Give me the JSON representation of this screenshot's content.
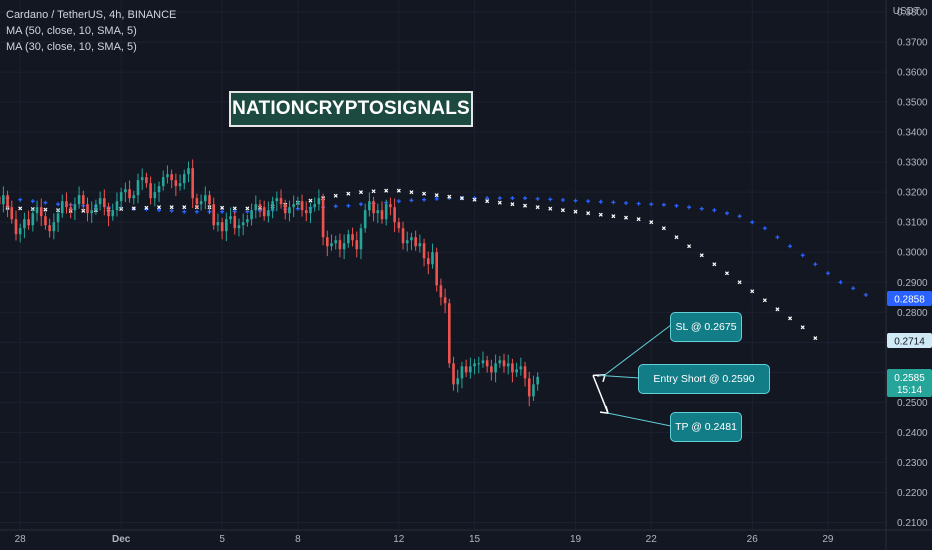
{
  "legend": {
    "symbol": "Cardano / TetherUS, 4h, BINANCE",
    "ma1": "MA (50, close, 10, SMA, 5)",
    "ma2": "MA (30, close, 10, SMA, 5)"
  },
  "brand": "NATIONCRYPTOSIGNALS",
  "axis_unit": "USDT",
  "callouts": {
    "sl": "SL @ 0.2675",
    "entry": "Entry Short @ 0.2590",
    "tp": "TP @ 0.2481"
  },
  "price_tags": {
    "ma50": "0.2858",
    "ma30": "0.2714",
    "last": "0.2585",
    "countdown": "15:14"
  },
  "colors": {
    "background": "#131722",
    "up": "#26a69a",
    "down": "#ef5350",
    "ma50": "#2962ff",
    "ma30": "#ffffff",
    "callout": "#137d87"
  },
  "chart_data": {
    "type": "candlestick",
    "y_ticks": [
      "0.3800",
      "0.3700",
      "0.3600",
      "0.3500",
      "0.3400",
      "0.3300",
      "0.3200",
      "0.3100",
      "0.3000",
      "0.2900",
      "0.2800",
      "0.2700",
      "0.2600",
      "0.2500",
      "0.2400",
      "0.2300",
      "0.2200",
      "0.2100"
    ],
    "ylim": [
      0.2075,
      0.384
    ],
    "x_ticks": [
      {
        "label": "28",
        "day": -3
      },
      {
        "label": "Dec",
        "day": 1
      },
      {
        "label": "5",
        "day": 5
      },
      {
        "label": "8",
        "day": 8
      },
      {
        "label": "12",
        "day": 12
      },
      {
        "label": "15",
        "day": 15
      },
      {
        "label": "19",
        "day": 19
      },
      {
        "label": "22",
        "day": 22
      },
      {
        "label": "26",
        "day": 26
      },
      {
        "label": "29",
        "day": 29
      }
    ],
    "xlim": [
      -3.8,
      31.3
    ],
    "candles_per_day": 6,
    "first_candle_day": -4,
    "closes": [
      0.3185,
      0.316,
      0.319,
      0.315,
      0.311,
      0.306,
      0.308,
      0.311,
      0.309,
      0.313,
      0.315,
      0.312,
      0.309,
      0.307,
      0.31,
      0.313,
      0.317,
      0.315,
      0.314,
      0.316,
      0.319,
      0.316,
      0.313,
      0.314,
      0.316,
      0.318,
      0.315,
      0.312,
      0.314,
      0.317,
      0.32,
      0.321,
      0.318,
      0.319,
      0.324,
      0.325,
      0.323,
      0.318,
      0.32,
      0.322,
      0.325,
      0.326,
      0.324,
      0.322,
      0.323,
      0.326,
      0.328,
      0.318,
      0.316,
      0.317,
      0.319,
      0.316,
      0.309,
      0.31,
      0.307,
      0.311,
      0.312,
      0.308,
      0.309,
      0.31,
      0.311,
      0.314,
      0.316,
      0.315,
      0.312,
      0.314,
      0.317,
      0.318,
      0.316,
      0.313,
      0.315,
      0.316,
      0.317,
      0.314,
      0.313,
      0.315,
      0.316,
      0.318,
      0.305,
      0.302,
      0.303,
      0.304,
      0.301,
      0.303,
      0.306,
      0.304,
      0.301,
      0.308,
      0.314,
      0.317,
      0.313,
      0.314,
      0.311,
      0.316,
      0.315,
      0.31,
      0.308,
      0.303,
      0.304,
      0.305,
      0.302,
      0.303,
      0.298,
      0.296,
      0.3,
      0.289,
      0.285,
      0.283,
      0.263,
      0.256,
      0.258,
      0.262,
      0.26,
      0.262,
      0.263,
      0.263,
      0.264,
      0.262,
      0.26,
      0.263,
      0.264,
      0.262,
      0.263,
      0.26,
      0.261,
      0.262,
      0.258,
      0.252,
      0.256,
      0.2585
    ],
    "series": [
      {
        "name": "MA (50, close, 10, SMA, 5)",
        "values": [
          0.3185,
          0.318,
          0.3175,
          0.317,
          0.3165,
          0.316,
          0.3158,
          0.3155,
          0.3153,
          0.315,
          0.3148,
          0.3145,
          0.3143,
          0.314,
          0.3138,
          0.3135,
          0.3135,
          0.3135,
          0.3135,
          0.3135,
          0.3135,
          0.3138,
          0.314,
          0.3143,
          0.3145,
          0.3148,
          0.315,
          0.3153,
          0.3155,
          0.316,
          0.3163,
          0.3165,
          0.317,
          0.3173,
          0.3175,
          0.3178,
          0.318,
          0.318,
          0.318,
          0.318,
          0.318,
          0.318,
          0.318,
          0.3178,
          0.3176,
          0.3174,
          0.3172,
          0.317,
          0.3168,
          0.3166,
          0.3164,
          0.3162,
          0.316,
          0.3158,
          0.3155,
          0.315,
          0.3145,
          0.314,
          0.313,
          0.312,
          0.31,
          0.308,
          0.305,
          0.302,
          0.299,
          0.296,
          0.293,
          0.29,
          0.288,
          0.2858
        ]
      },
      {
        "name": "MA (30, close, 10, SMA, 5)",
        "values": [
          0.315,
          0.3148,
          0.3146,
          0.3144,
          0.3142,
          0.314,
          0.3138,
          0.3138,
          0.314,
          0.3142,
          0.3144,
          0.3146,
          0.3148,
          0.315,
          0.315,
          0.315,
          0.315,
          0.315,
          0.3148,
          0.3146,
          0.3146,
          0.3148,
          0.3152,
          0.3158,
          0.3165,
          0.3172,
          0.318,
          0.3188,
          0.3195,
          0.32,
          0.3203,
          0.3205,
          0.3205,
          0.32,
          0.3195,
          0.319,
          0.3185,
          0.318,
          0.3175,
          0.317,
          0.3165,
          0.316,
          0.3155,
          0.315,
          0.3145,
          0.314,
          0.3135,
          0.313,
          0.3125,
          0.312,
          0.3115,
          0.311,
          0.31,
          0.308,
          0.305,
          0.302,
          0.299,
          0.296,
          0.293,
          0.29,
          0.287,
          0.284,
          0.281,
          0.278,
          0.275,
          0.2714
        ]
      }
    ],
    "sl": 0.2675,
    "entry": 0.259,
    "tp": 0.2481,
    "last_price": 0.2585
  }
}
